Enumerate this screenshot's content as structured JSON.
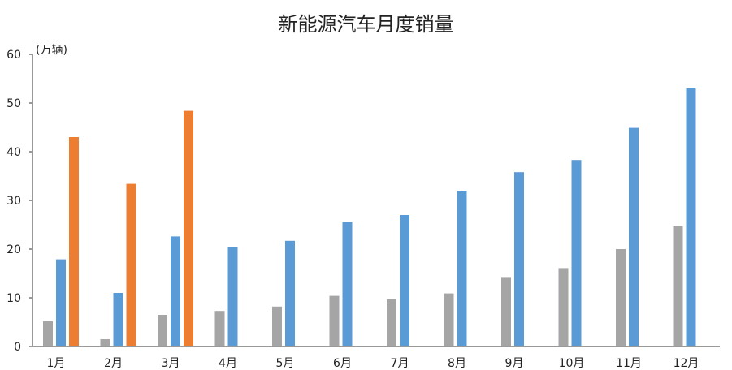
{
  "chart_data": {
    "type": "bar",
    "title": "新能源汽车月度销量",
    "unit_label": "(万辆)",
    "xlabel": "",
    "ylabel": "",
    "ylim": [
      0,
      60
    ],
    "y_ticks": [
      "0",
      "10",
      "20",
      "30",
      "40",
      "50",
      "60"
    ],
    "grid": false,
    "legend": "none",
    "categories": [
      "1月",
      "2月",
      "3月",
      "4月",
      "5月",
      "6月",
      "7月",
      "8月",
      "9月",
      "10月",
      "11月",
      "12月"
    ],
    "series": [
      {
        "color": "#a5a5a5",
        "values": [
          5.2,
          1.5,
          6.5,
          7.3,
          8.2,
          10.4,
          9.7,
          10.9,
          14.1,
          16.1,
          20.0,
          24.7
        ]
      },
      {
        "color": "#5b9bd5",
        "values": [
          17.9,
          11.0,
          22.6,
          20.5,
          21.7,
          25.6,
          27.0,
          32.0,
          35.8,
          38.3,
          44.9,
          53.0
        ]
      },
      {
        "color": "#ed7d31",
        "values": [
          43.0,
          33.4,
          48.4,
          null,
          null,
          null,
          null,
          null,
          null,
          null,
          null,
          null
        ]
      }
    ]
  }
}
